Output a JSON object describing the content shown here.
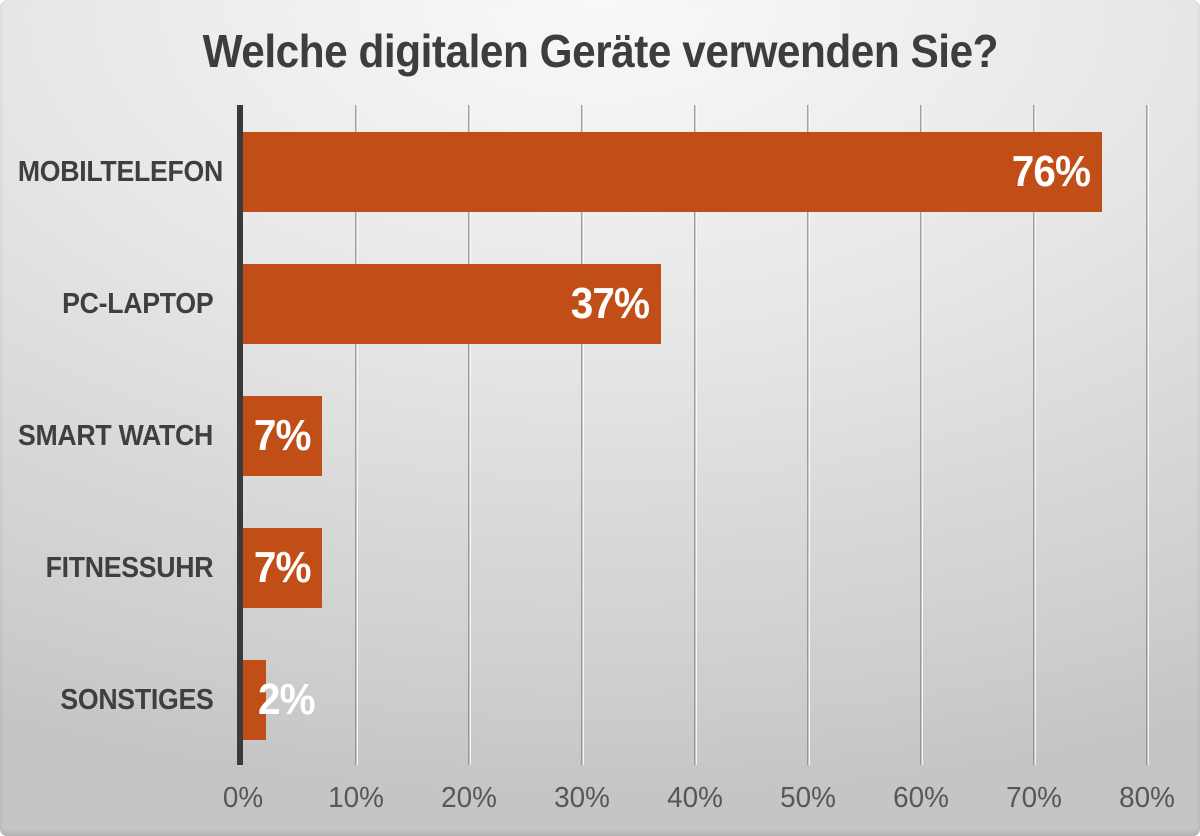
{
  "chart_data": {
    "type": "bar",
    "orientation": "horizontal",
    "title": "Welche digitalen Geräte verwenden Sie?",
    "categories": [
      "MOBILTELEFON",
      "PC-LAPTOP",
      "SMART WATCH",
      "FITNESSUHR",
      "SONSTIGES"
    ],
    "values": [
      76,
      37,
      7,
      7,
      2
    ],
    "value_labels": [
      "76%",
      "37%",
      "7%",
      "7%",
      "2%"
    ],
    "xlabel": "",
    "ylabel": "",
    "xlim": [
      0,
      80
    ],
    "x_ticks": [
      "0%",
      "10%",
      "20%",
      "30%",
      "40%",
      "50%",
      "60%",
      "70%",
      "80%"
    ],
    "grid": true,
    "legend": false,
    "value_labels_position": "inside-end"
  },
  "colors": {
    "bar": "#c04e16",
    "title_text": "#3d3d3d",
    "category_text": "#3f3f3f",
    "tick_text": "#575757",
    "value_text": "#ffffff",
    "axis_line": "#3a3a3a",
    "bg_top": "#f9f9f9",
    "bg_mid": "#e7e7e7",
    "bg_bottom": "#cdcdcd",
    "bg_edge": "#c5c5c5"
  }
}
